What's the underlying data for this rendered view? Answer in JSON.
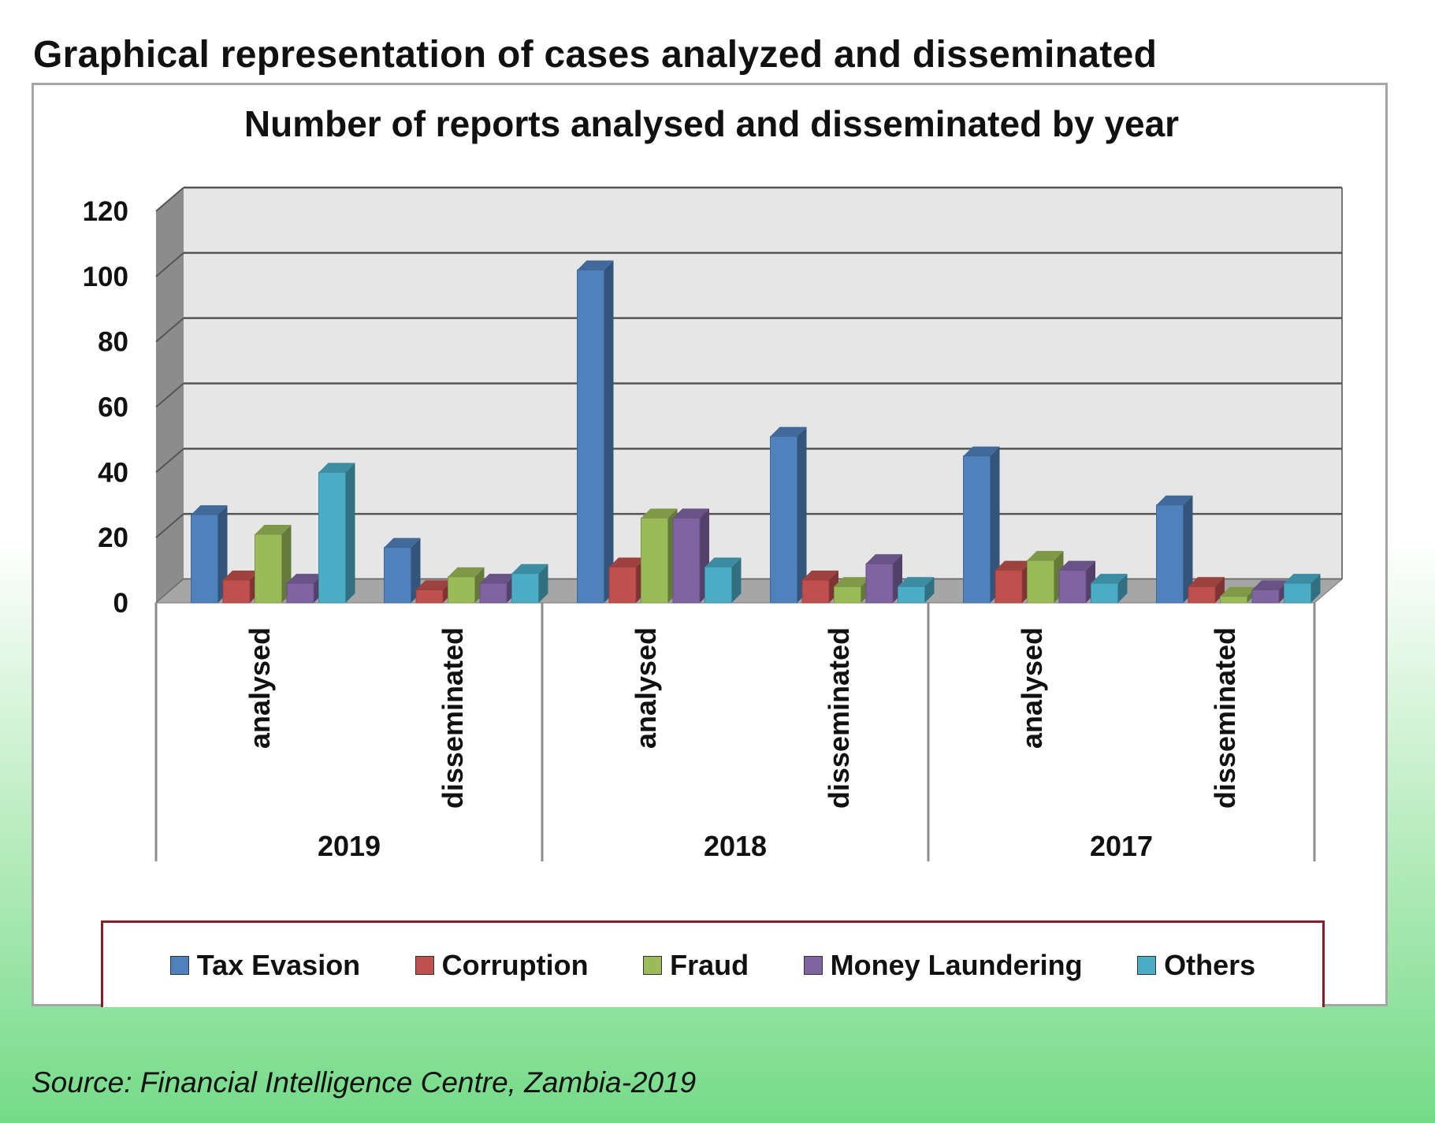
{
  "page": {
    "heading": "Graphical representation of cases analyzed and disseminated",
    "source": "Source: Financial Intelligence Centre, Zambia-2019"
  },
  "colors": {
    "tax_evasion": "#4f81bd",
    "corruption": "#c0504d",
    "fraud": "#9bbb59",
    "money_laundering": "#8064a2",
    "others": "#4bacc6"
  },
  "chart_data": {
    "type": "bar",
    "title": "Number of reports analysed and disseminated by year",
    "xlabel": "",
    "ylabel": "",
    "ylim": [
      0,
      120
    ],
    "yticks": [
      0,
      20,
      40,
      60,
      80,
      100,
      120
    ],
    "grid": true,
    "legend_position": "bottom",
    "groups": [
      "2019",
      "2018",
      "2017"
    ],
    "subcategories": [
      "analysed",
      "disseminated"
    ],
    "categories": [
      "2019 analysed",
      "2019 disseminated",
      "2018 analysed",
      "2018 disseminated",
      "2017 analysed",
      "2017 disseminated"
    ],
    "series": [
      {
        "name": "Tax Evasion",
        "values": [
          27,
          17,
          102,
          51,
          45,
          30
        ]
      },
      {
        "name": "Corruption",
        "values": [
          7,
          4,
          11,
          7,
          10,
          5
        ]
      },
      {
        "name": "Fraud",
        "values": [
          21,
          8,
          26,
          5,
          13,
          2
        ]
      },
      {
        "name": "Money Laundering",
        "values": [
          6,
          6,
          26,
          12,
          10,
          4
        ]
      },
      {
        "name": "Others",
        "values": [
          40,
          9,
          11,
          5,
          6,
          6
        ]
      }
    ]
  }
}
